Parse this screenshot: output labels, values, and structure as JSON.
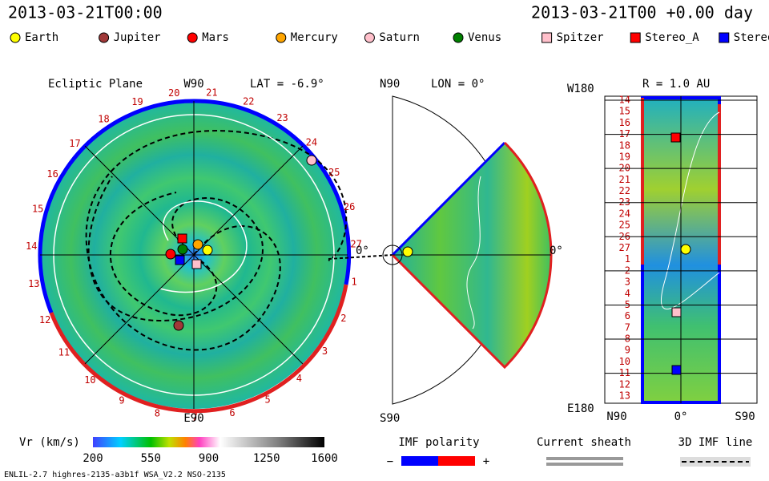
{
  "header": {
    "date_left": "2013-03-21T00:00",
    "date_right": "2013-03-21T00 +0.00 day"
  },
  "legend": [
    {
      "name": "Earth",
      "color": "#ffff00",
      "shape": "circle"
    },
    {
      "name": "Jupiter",
      "color": "#a03838",
      "shape": "circle"
    },
    {
      "name": "Mars",
      "color": "#ff0000",
      "shape": "circle"
    },
    {
      "name": "Mercury",
      "color": "#ffa500",
      "shape": "circle"
    },
    {
      "name": "Saturn",
      "color": "#ffc0cb",
      "shape": "circle"
    },
    {
      "name": "Venus",
      "color": "#008000",
      "shape": "circle"
    },
    {
      "name": "Spitzer",
      "color": "#ffc0cb",
      "shape": "square"
    },
    {
      "name": "Stereo_A",
      "color": "#ff0000",
      "shape": "square"
    },
    {
      "name": "Stereo",
      "color": "#0000ff",
      "shape": "square"
    }
  ],
  "ecliptic": {
    "title": "Ecliptic Plane",
    "top": "W90",
    "lat": "LAT = -6.9°",
    "bottom": "E90",
    "right": "0°",
    "ring_labels": [
      "20",
      "21",
      "22",
      "23",
      "24",
      "25",
      "26",
      "27",
      "1",
      "2",
      "3",
      "4",
      "5",
      "6",
      "7",
      "8",
      "9",
      "10",
      "11",
      "12",
      "13",
      "14",
      "15",
      "16",
      "17",
      "18",
      "19"
    ]
  },
  "meridional": {
    "top": "N90",
    "lon": "LON = 0°",
    "right": "0°",
    "bottom": "S90"
  },
  "sphere": {
    "title": "R = 1.0 AU",
    "top": "W180",
    "bottom": "E180",
    "x_labels": [
      "N90",
      "0°",
      "S90"
    ],
    "row_labels": [
      "14",
      "15",
      "16",
      "17",
      "18",
      "19",
      "20",
      "21",
      "22",
      "23",
      "24",
      "25",
      "26",
      "27",
      "1",
      "2",
      "3",
      "4",
      "5",
      "6",
      "7",
      "8",
      "9",
      "10",
      "11",
      "12",
      "13"
    ]
  },
  "colorbar": {
    "label": "Vr (km/s)",
    "ticks": [
      200,
      550,
      900,
      1250,
      1600
    ]
  },
  "imf": {
    "title": "IMF polarity",
    "minus": "−",
    "plus": "+"
  },
  "sheath": {
    "title": "Current sheath"
  },
  "imf_line": {
    "title": "3D IMF line"
  },
  "footer": "ENLIL-2.7 highres-2135-a3b1f WSA_V2.2 NSO-2135"
}
